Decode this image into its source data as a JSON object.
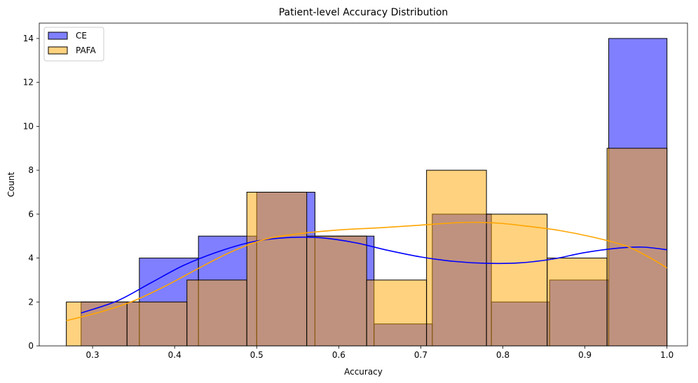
{
  "chart_data": {
    "type": "histogram",
    "title": "Patient-level Accuracy Distribution",
    "xlabel": "Accuracy",
    "ylabel": "Count",
    "xlim": [
      0.235,
      1.025
    ],
    "ylim": [
      0,
      14.7
    ],
    "xticks": [
      0.3,
      0.4,
      0.5,
      0.6,
      0.7,
      0.8,
      0.9,
      1.0
    ],
    "xtick_labels": [
      "0.3",
      "0.4",
      "0.5",
      "0.6",
      "0.7",
      "0.8",
      "0.9",
      "1.0"
    ],
    "yticks": [
      0,
      2,
      4,
      6,
      8,
      10,
      12,
      14
    ],
    "ytick_labels": [
      "0",
      "2",
      "4",
      "6",
      "8",
      "10",
      "12",
      "14"
    ],
    "grid": false,
    "legend_position": "top-left",
    "series": [
      {
        "name": "CE",
        "color": "#0000ff",
        "fill_opacity": 0.5,
        "bins": [
          {
            "x0": 0.286,
            "x1": 0.357,
            "count": 2
          },
          {
            "x0": 0.357,
            "x1": 0.429,
            "count": 4
          },
          {
            "x0": 0.429,
            "x1": 0.5,
            "count": 5
          },
          {
            "x0": 0.5,
            "x1": 0.571,
            "count": 7
          },
          {
            "x0": 0.571,
            "x1": 0.643,
            "count": 5
          },
          {
            "x0": 0.643,
            "x1": 0.714,
            "count": 1
          },
          {
            "x0": 0.714,
            "x1": 0.786,
            "count": 6
          },
          {
            "x0": 0.786,
            "x1": 0.857,
            "count": 2
          },
          {
            "x0": 0.857,
            "x1": 0.929,
            "count": 3
          },
          {
            "x0": 0.929,
            "x1": 1.0,
            "count": 14
          }
        ],
        "kde": [
          [
            0.286,
            1.5
          ],
          [
            0.33,
            2.05
          ],
          [
            0.37,
            2.85
          ],
          [
            0.41,
            3.65
          ],
          [
            0.45,
            4.25
          ],
          [
            0.49,
            4.7
          ],
          [
            0.52,
            4.88
          ],
          [
            0.55,
            4.95
          ],
          [
            0.58,
            4.92
          ],
          [
            0.62,
            4.7
          ],
          [
            0.66,
            4.35
          ],
          [
            0.7,
            4.05
          ],
          [
            0.74,
            3.85
          ],
          [
            0.78,
            3.76
          ],
          [
            0.82,
            3.78
          ],
          [
            0.86,
            3.95
          ],
          [
            0.9,
            4.25
          ],
          [
            0.94,
            4.45
          ],
          [
            0.97,
            4.5
          ],
          [
            1.0,
            4.38
          ]
        ]
      },
      {
        "name": "PAFA",
        "color": "#ffa500",
        "fill_opacity": 0.5,
        "bins": [
          {
            "x0": 0.268,
            "x1": 0.342,
            "count": 2
          },
          {
            "x0": 0.342,
            "x1": 0.415,
            "count": 2
          },
          {
            "x0": 0.415,
            "x1": 0.488,
            "count": 3
          },
          {
            "x0": 0.488,
            "x1": 0.561,
            "count": 7
          },
          {
            "x0": 0.561,
            "x1": 0.634,
            "count": 5
          },
          {
            "x0": 0.634,
            "x1": 0.707,
            "count": 3
          },
          {
            "x0": 0.707,
            "x1": 0.78,
            "count": 8
          },
          {
            "x0": 0.78,
            "x1": 0.854,
            "count": 6
          },
          {
            "x0": 0.854,
            "x1": 0.927,
            "count": 4
          },
          {
            "x0": 0.927,
            "x1": 1.0,
            "count": 9
          }
        ],
        "kde": [
          [
            0.268,
            1.15
          ],
          [
            0.31,
            1.55
          ],
          [
            0.35,
            2.05
          ],
          [
            0.39,
            2.75
          ],
          [
            0.43,
            3.55
          ],
          [
            0.47,
            4.3
          ],
          [
            0.51,
            4.85
          ],
          [
            0.55,
            5.1
          ],
          [
            0.6,
            5.28
          ],
          [
            0.65,
            5.38
          ],
          [
            0.7,
            5.5
          ],
          [
            0.75,
            5.62
          ],
          [
            0.79,
            5.6
          ],
          [
            0.83,
            5.45
          ],
          [
            0.87,
            5.25
          ],
          [
            0.91,
            4.95
          ],
          [
            0.95,
            4.55
          ],
          [
            0.98,
            4.0
          ],
          [
            1.0,
            3.55
          ]
        ]
      }
    ]
  }
}
